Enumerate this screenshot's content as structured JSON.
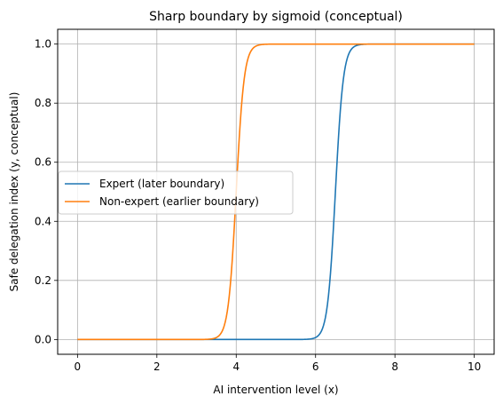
{
  "chart_data": {
    "type": "line",
    "title": "Sharp boundary by sigmoid (conceptual)",
    "xlabel": "AI intervention level (x)",
    "ylabel": "Safe delegation index (y, conceptual)",
    "xlim": [
      -0.5,
      10.5
    ],
    "ylim": [
      -0.05,
      1.05
    ],
    "xticks": [
      0,
      2,
      4,
      6,
      8,
      10
    ],
    "xtick_labels": [
      "0",
      "2",
      "4",
      "6",
      "8",
      "10"
    ],
    "yticks": [
      0.0,
      0.2,
      0.4,
      0.6,
      0.8,
      1.0
    ],
    "ytick_labels": [
      "0.0",
      "0.2",
      "0.4",
      "0.6",
      "0.8",
      "1.0"
    ],
    "grid": true,
    "legend_position": "center-left",
    "x_range": [
      0,
      10
    ],
    "series": [
      {
        "name": "Expert (later boundary)",
        "color": "#1f77b4",
        "function": "sigmoid",
        "midpoint": 6.5,
        "steepness": 10
      },
      {
        "name": "Non-expert (earlier boundary)",
        "color": "#ff7f0e",
        "function": "sigmoid",
        "midpoint": 4.0,
        "steepness": 10
      }
    ]
  }
}
